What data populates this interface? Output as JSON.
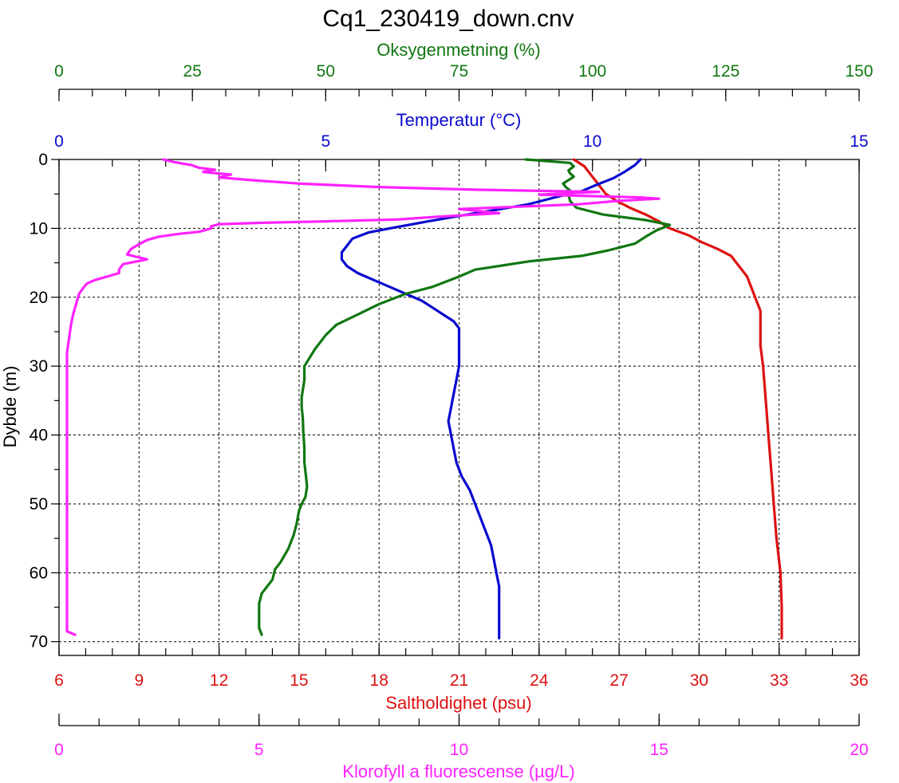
{
  "chart_data": {
    "type": "line",
    "title": "Cq1_230419_down.cnv",
    "colors": {
      "oxygen": "#117711",
      "temperature": "#0a0ad0",
      "salinity": "#dd1111",
      "chlorophyll": "#ff22ff"
    },
    "y_axis": {
      "label": "Dybde (m)",
      "range": [
        0,
        72
      ],
      "ticks": [
        0,
        10,
        20,
        30,
        40,
        50,
        60,
        70
      ],
      "grid": true
    },
    "axes": {
      "oxygen": {
        "label": "Oksygenmetning (%)",
        "position": "top-outer",
        "range": [
          0,
          150
        ],
        "ticks": [
          0,
          25,
          50,
          75,
          100,
          125,
          150
        ]
      },
      "temperature": {
        "label": "Temperatur (°C)",
        "position": "top-inner",
        "range": [
          0,
          15
        ],
        "ticks": [
          0,
          5,
          10,
          15
        ]
      },
      "salinity": {
        "label": "Saltholdighet (psu)",
        "position": "bottom-inner",
        "range": [
          6,
          36
        ],
        "ticks": [
          6,
          9,
          12,
          15,
          18,
          21,
          24,
          27,
          30,
          33,
          36
        ],
        "grid": true
      },
      "chlorophyll": {
        "label": "Klorofyll a fluorescense (µg/L)",
        "position": "bottom-outer",
        "range": [
          0,
          20
        ],
        "ticks": [
          0,
          5,
          10,
          15,
          20
        ]
      }
    },
    "series": [
      {
        "key": "salinity",
        "points": [
          [
            25.3,
            0
          ],
          [
            25.7,
            1
          ],
          [
            25.9,
            2
          ],
          [
            26.1,
            3
          ],
          [
            26.3,
            4
          ],
          [
            26.5,
            5
          ],
          [
            26.9,
            6
          ],
          [
            27.4,
            7
          ],
          [
            28.0,
            8
          ],
          [
            28.5,
            9
          ],
          [
            28.9,
            10
          ],
          [
            29.6,
            11
          ],
          [
            30.1,
            12
          ],
          [
            30.7,
            13
          ],
          [
            31.2,
            14
          ],
          [
            31.4,
            15
          ],
          [
            31.6,
            16
          ],
          [
            31.8,
            17
          ],
          [
            31.9,
            18
          ],
          [
            32.0,
            19
          ],
          [
            32.1,
            20
          ],
          [
            32.2,
            21
          ],
          [
            32.3,
            22
          ],
          [
            32.3,
            24
          ],
          [
            32.3,
            27
          ],
          [
            32.4,
            30
          ],
          [
            32.5,
            35
          ],
          [
            32.6,
            40
          ],
          [
            32.7,
            45
          ],
          [
            32.8,
            50
          ],
          [
            32.9,
            55
          ],
          [
            33.05,
            60
          ],
          [
            33.1,
            65
          ],
          [
            33.1,
            69.5
          ]
        ]
      },
      {
        "key": "temperature",
        "points": [
          [
            10.9,
            0
          ],
          [
            10.8,
            0.8
          ],
          [
            10.6,
            1.8
          ],
          [
            10.4,
            2.7
          ],
          [
            10.1,
            3.6
          ],
          [
            9.8,
            4.6
          ],
          [
            9.3,
            5.5
          ],
          [
            8.8,
            6.5
          ],
          [
            8.2,
            7.3
          ],
          [
            7.5,
            8.2
          ],
          [
            6.9,
            9.0
          ],
          [
            6.2,
            10.0
          ],
          [
            5.8,
            10.6
          ],
          [
            5.5,
            11.5
          ],
          [
            5.4,
            12.5
          ],
          [
            5.3,
            13.5
          ],
          [
            5.3,
            14.5
          ],
          [
            5.4,
            15.5
          ],
          [
            5.6,
            16.5
          ],
          [
            5.9,
            17.5
          ],
          [
            6.2,
            18.5
          ],
          [
            6.5,
            19.5
          ],
          [
            6.8,
            20.5
          ],
          [
            7.0,
            21.5
          ],
          [
            7.2,
            22.5
          ],
          [
            7.4,
            23.5
          ],
          [
            7.5,
            24.5
          ],
          [
            7.5,
            26
          ],
          [
            7.5,
            28
          ],
          [
            7.5,
            30
          ],
          [
            7.45,
            32
          ],
          [
            7.4,
            34
          ],
          [
            7.35,
            36
          ],
          [
            7.3,
            38
          ],
          [
            7.35,
            40
          ],
          [
            7.4,
            42
          ],
          [
            7.45,
            44
          ],
          [
            7.55,
            46
          ],
          [
            7.7,
            48
          ],
          [
            7.8,
            50
          ],
          [
            7.9,
            52
          ],
          [
            8.0,
            54
          ],
          [
            8.1,
            56
          ],
          [
            8.15,
            58
          ],
          [
            8.2,
            60
          ],
          [
            8.25,
            62
          ],
          [
            8.25,
            65
          ],
          [
            8.25,
            69.5
          ]
        ]
      },
      {
        "key": "oxygen",
        "points": [
          [
            87.5,
            0
          ],
          [
            95.8,
            0.5
          ],
          [
            96.5,
            1.0
          ],
          [
            95.5,
            1.6
          ],
          [
            95.8,
            2.0
          ],
          [
            96.5,
            2.5
          ],
          [
            95.5,
            3.0
          ],
          [
            94.5,
            3.5
          ],
          [
            95.0,
            4.0
          ],
          [
            95.8,
            4.5
          ],
          [
            95.5,
            5.0
          ],
          [
            95.8,
            6.0
          ],
          [
            97.0,
            7.0
          ],
          [
            102,
            8.0
          ],
          [
            110,
            8.8
          ],
          [
            114.5,
            9.5
          ],
          [
            112,
            10.3
          ],
          [
            110,
            11.2
          ],
          [
            108,
            12.2
          ],
          [
            103,
            13.2
          ],
          [
            98,
            14.0
          ],
          [
            88,
            14.8
          ],
          [
            78,
            16.0
          ],
          [
            75,
            17.0
          ],
          [
            70,
            18.5
          ],
          [
            65,
            19.5
          ],
          [
            60,
            21.0
          ],
          [
            56,
            22.5
          ],
          [
            52,
            24.0
          ],
          [
            50,
            25.5
          ],
          [
            48,
            27.5
          ],
          [
            46,
            30.0
          ],
          [
            46,
            32.0
          ],
          [
            45.5,
            34.5
          ],
          [
            45.5,
            36.0
          ],
          [
            45.7,
            37.5
          ],
          [
            45.8,
            39.5
          ],
          [
            46,
            42.0
          ],
          [
            46,
            44.0
          ],
          [
            46.3,
            46.0
          ],
          [
            46.5,
            47.5
          ],
          [
            46.2,
            49.0
          ],
          [
            45.5,
            50.0
          ],
          [
            45,
            51.0
          ],
          [
            44.5,
            53.0
          ],
          [
            44,
            54.5
          ],
          [
            43,
            56.5
          ],
          [
            41.5,
            58.5
          ],
          [
            40.5,
            59.5
          ],
          [
            40,
            61.0
          ],
          [
            39,
            62.0
          ],
          [
            38,
            63.0
          ],
          [
            37.5,
            64.5
          ],
          [
            37.5,
            66.5
          ],
          [
            37.5,
            68.0
          ],
          [
            38,
            69.0
          ]
        ]
      },
      {
        "key": "chlorophyll",
        "points": [
          [
            2.6,
            0
          ],
          [
            2.9,
            0.4
          ],
          [
            3.3,
            0.8
          ],
          [
            3.5,
            1.2
          ],
          [
            3.9,
            1.5
          ],
          [
            3.6,
            1.8
          ],
          [
            4.3,
            2.2
          ],
          [
            4.0,
            2.6
          ],
          [
            4.8,
            3.0
          ],
          [
            6.0,
            3.5
          ],
          [
            8.0,
            4.0
          ],
          [
            10.5,
            4.4
          ],
          [
            13.5,
            4.7
          ],
          [
            12.0,
            5.1
          ],
          [
            14.5,
            5.5
          ],
          [
            15.0,
            5.7
          ],
          [
            14.0,
            6.0
          ],
          [
            13.0,
            6.5
          ],
          [
            10.0,
            7.2
          ],
          [
            11.0,
            7.8
          ],
          [
            9.5,
            8.3
          ],
          [
            8.5,
            8.7
          ],
          [
            6.5,
            9.0
          ],
          [
            5.0,
            9.2
          ],
          [
            4.0,
            9.4
          ],
          [
            3.8,
            9.7
          ],
          [
            3.8,
            10.0
          ],
          [
            3.5,
            10.5
          ],
          [
            3.0,
            10.8
          ],
          [
            2.5,
            11.2
          ],
          [
            2.2,
            11.7
          ],
          [
            2.0,
            12.3
          ],
          [
            1.8,
            13.0
          ],
          [
            1.7,
            13.8
          ],
          [
            2.2,
            14.5
          ],
          [
            1.6,
            15.2
          ],
          [
            1.5,
            16.0
          ],
          [
            1.5,
            16.5
          ],
          [
            1.2,
            17.0
          ],
          [
            0.9,
            17.5
          ],
          [
            0.7,
            18.0
          ],
          [
            0.6,
            18.7
          ],
          [
            0.5,
            19.5
          ],
          [
            0.45,
            20.5
          ],
          [
            0.4,
            21.5
          ],
          [
            0.35,
            22.5
          ],
          [
            0.3,
            24.0
          ],
          [
            0.25,
            26.0
          ],
          [
            0.2,
            28.0
          ],
          [
            0.2,
            30.0
          ],
          [
            0.2,
            35.0
          ],
          [
            0.2,
            40.0
          ],
          [
            0.2,
            45.0
          ],
          [
            0.2,
            50.0
          ],
          [
            0.2,
            55.0
          ],
          [
            0.2,
            60.0
          ],
          [
            0.2,
            65.0
          ],
          [
            0.2,
            68.5
          ],
          [
            0.4,
            69.0
          ]
        ]
      }
    ]
  }
}
